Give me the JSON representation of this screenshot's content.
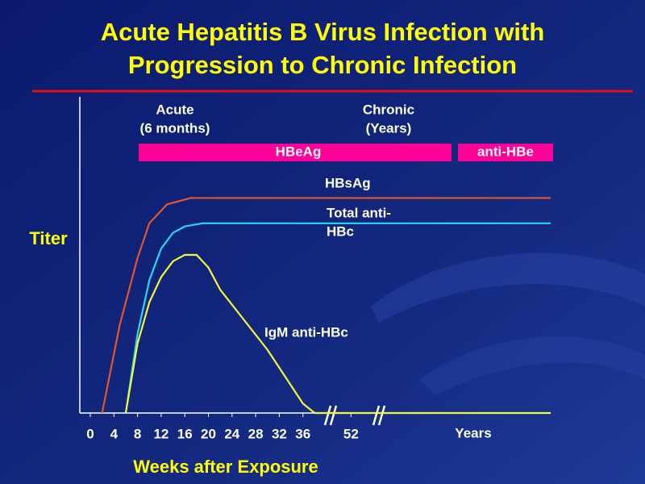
{
  "chart_data": {
    "type": "line",
    "title": [
      "Acute Hepatitis B Virus Infection with",
      "Progression to Chronic Infection"
    ],
    "x_label": "Weeks after Exposure",
    "y_label": "Titer",
    "x_unit_label": "Years",
    "xlim": [
      0,
      150
    ],
    "x_break": 40,
    "xticks": [
      0,
      4,
      8,
      12,
      16,
      20,
      24,
      28,
      32,
      36,
      52
    ],
    "ylim": [
      0,
      100
    ],
    "phases": [
      {
        "label": [
          "Acute",
          "(6 months)"
        ]
      },
      {
        "label": [
          "Chronic",
          "(Years)"
        ]
      }
    ],
    "bands": [
      {
        "label": "HBeAg",
        "color": "#ff0099"
      },
      {
        "label": "anti-HBe",
        "color": "#ff0099"
      }
    ],
    "series": [
      {
        "name": [
          "HBsAg"
        ],
        "color": "#e2572b",
        "x": [
          2,
          5,
          8,
          10,
          13,
          17,
          150
        ],
        "values": [
          0,
          28,
          49,
          60,
          66,
          68,
          68
        ]
      },
      {
        "name": [
          "Total anti-",
          "HBc"
        ],
        "color": "#27d8f0",
        "x": [
          6,
          8,
          10,
          12,
          14,
          16,
          19,
          150
        ],
        "values": [
          0,
          25,
          42,
          52,
          57,
          59,
          60,
          60
        ]
      },
      {
        "name": [
          "IgM anti-HBc"
        ],
        "color": "#f5f53a",
        "x": [
          6,
          8,
          10,
          12,
          14,
          16,
          18,
          20,
          22,
          30,
          36,
          38,
          150
        ],
        "values": [
          0,
          22,
          35,
          43,
          48,
          50,
          50,
          46,
          39,
          20,
          3,
          0,
          0
        ]
      }
    ]
  }
}
